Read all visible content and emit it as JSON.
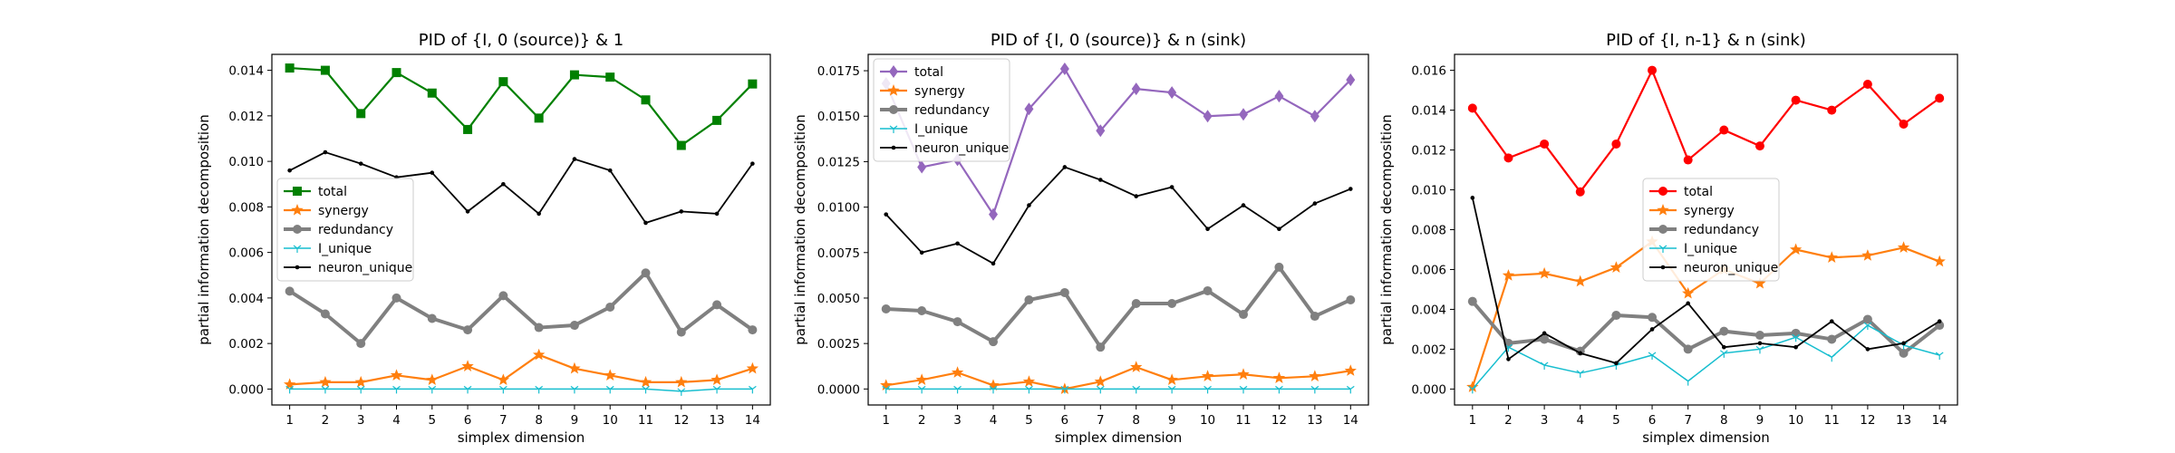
{
  "chart_data": [
    {
      "type": "line",
      "title": "PID of {I, 0 (source)} & 1",
      "xlabel": "simplex dimension",
      "ylabel": "partial information decomposition",
      "x": [
        1,
        2,
        3,
        4,
        5,
        6,
        7,
        8,
        9,
        10,
        11,
        12,
        13,
        14
      ],
      "xlim": [
        0.5,
        14.5
      ],
      "ylim": [
        -0.0007,
        0.0147
      ],
      "yticks": [
        0.0,
        0.002,
        0.004,
        0.006,
        0.008,
        0.01,
        0.012,
        0.014
      ],
      "ytick_labels": [
        "0.000",
        "0.002",
        "0.004",
        "0.006",
        "0.008",
        "0.010",
        "0.012",
        "0.014"
      ],
      "legend_placement": "center-left",
      "series": [
        {
          "name": "total",
          "color": "#008000",
          "marker": "square",
          "values": [
            0.0141,
            0.014,
            0.0121,
            0.0139,
            0.013,
            0.0114,
            0.0135,
            0.0119,
            0.0138,
            0.0137,
            0.0127,
            0.0107,
            0.0118,
            0.0134
          ]
        },
        {
          "name": "synergy",
          "color": "#ff7f0e",
          "marker": "star",
          "values": [
            0.0002,
            0.0003,
            0.0003,
            0.0006,
            0.0004,
            0.001,
            0.0004,
            0.0015,
            0.0009,
            0.0006,
            0.0003,
            0.0003,
            0.0004,
            0.0009
          ]
        },
        {
          "name": "redundancy",
          "color": "#808080",
          "marker": "circle",
          "values": [
            0.0043,
            0.0033,
            0.002,
            0.004,
            0.0031,
            0.0026,
            0.0041,
            0.0027,
            0.0028,
            0.0036,
            0.0051,
            0.0025,
            0.0037,
            0.0026
          ]
        },
        {
          "name": "I_unique",
          "color": "#17becf",
          "marker": "tri",
          "values": [
            0.0,
            0.0,
            0.0,
            0.0,
            0.0,
            0.0,
            0.0,
            0.0,
            0.0,
            0.0,
            0.0,
            -0.0001,
            0.0,
            0.0
          ]
        },
        {
          "name": "neuron_unique",
          "color": "#000000",
          "marker": "dot",
          "values": [
            0.0096,
            0.0104,
            0.0099,
            0.0093,
            0.0095,
            0.0078,
            0.009,
            0.0077,
            0.0101,
            0.0096,
            0.0073,
            0.0078,
            0.0077,
            0.0099
          ]
        }
      ]
    },
    {
      "type": "line",
      "title": "PID of {I, 0 (source)} & n (sink)",
      "xlabel": "simplex dimension",
      "ylabel": "partial information decomposition",
      "x": [
        1,
        2,
        3,
        4,
        5,
        6,
        7,
        8,
        9,
        10,
        11,
        12,
        13,
        14
      ],
      "xlim": [
        0.5,
        14.5
      ],
      "ylim": [
        -0.00088,
        0.0184
      ],
      "yticks": [
        0.0,
        0.0025,
        0.005,
        0.0075,
        0.01,
        0.0125,
        0.015,
        0.0175
      ],
      "ytick_labels": [
        "0.0000",
        "0.0025",
        "0.0050",
        "0.0075",
        "0.0100",
        "0.0125",
        "0.0150",
        "0.0175"
      ],
      "legend_placement": "upper-left",
      "series": [
        {
          "name": "total",
          "color": "#9467bd",
          "marker": "diamond",
          "values": [
            0.0168,
            0.0122,
            0.0126,
            0.0096,
            0.0154,
            0.0176,
            0.0142,
            0.0165,
            0.0163,
            0.015,
            0.0151,
            0.0161,
            0.015,
            0.017
          ]
        },
        {
          "name": "synergy",
          "color": "#ff7f0e",
          "marker": "star",
          "values": [
            0.0002,
            0.0005,
            0.0009,
            0.0002,
            0.0004,
            0.0,
            0.0004,
            0.0012,
            0.0005,
            0.0007,
            0.0008,
            0.0006,
            0.0007,
            0.001
          ]
        },
        {
          "name": "redundancy",
          "color": "#808080",
          "marker": "circle",
          "values": [
            0.0044,
            0.0043,
            0.0037,
            0.0026,
            0.0049,
            0.0053,
            0.0023,
            0.0047,
            0.0047,
            0.0054,
            0.0041,
            0.0067,
            0.004,
            0.0049
          ]
        },
        {
          "name": "I_unique",
          "color": "#17becf",
          "marker": "tri",
          "values": [
            0.0,
            0.0,
            0.0,
            0.0,
            0.0,
            0.0,
            0.0,
            0.0,
            0.0,
            0.0,
            0.0,
            0.0,
            0.0,
            0.0
          ]
        },
        {
          "name": "neuron_unique",
          "color": "#000000",
          "marker": "dot",
          "values": [
            0.0096,
            0.0075,
            0.008,
            0.0069,
            0.0101,
            0.0122,
            0.0115,
            0.0106,
            0.0111,
            0.0088,
            0.0101,
            0.0088,
            0.0102,
            0.011
          ]
        }
      ]
    },
    {
      "type": "line",
      "title": "PID of {I, n-1} & n (sink)",
      "xlabel": "simplex dimension",
      "ylabel": "partial information decomposition",
      "x": [
        1,
        2,
        3,
        4,
        5,
        6,
        7,
        8,
        9,
        10,
        11,
        12,
        13,
        14
      ],
      "xlim": [
        0.5,
        14.5
      ],
      "ylim": [
        -0.0008,
        0.0168
      ],
      "yticks": [
        0.0,
        0.002,
        0.004,
        0.006,
        0.008,
        0.01,
        0.012,
        0.014,
        0.016
      ],
      "ytick_labels": [
        "0.000",
        "0.002",
        "0.004",
        "0.006",
        "0.008",
        "0.010",
        "0.012",
        "0.014",
        "0.016"
      ],
      "legend_placement": "center",
      "series": [
        {
          "name": "total",
          "color": "#ff0000",
          "marker": "circle",
          "values": [
            0.0141,
            0.0116,
            0.0123,
            0.0099,
            0.0123,
            0.016,
            0.0115,
            0.013,
            0.0122,
            0.0145,
            0.014,
            0.0153,
            0.0133,
            0.0146
          ]
        },
        {
          "name": "synergy",
          "color": "#ff7f0e",
          "marker": "star",
          "values": [
            0.0001,
            0.0057,
            0.0058,
            0.0054,
            0.0061,
            0.0074,
            0.0048,
            0.006,
            0.0053,
            0.007,
            0.0066,
            0.0067,
            0.0071,
            0.0064
          ]
        },
        {
          "name": "redundancy",
          "color": "#808080",
          "marker": "circle",
          "values": [
            0.0044,
            0.0023,
            0.0025,
            0.0019,
            0.0037,
            0.0036,
            0.002,
            0.0029,
            0.0027,
            0.0028,
            0.0025,
            0.0035,
            0.0018,
            0.0032
          ]
        },
        {
          "name": "I_unique",
          "color": "#17becf",
          "marker": "tri",
          "values": [
            0.0,
            0.0021,
            0.0012,
            0.0008,
            0.0012,
            0.0017,
            0.0004,
            0.0018,
            0.002,
            0.0026,
            0.0016,
            0.0032,
            0.0022,
            0.0017
          ]
        },
        {
          "name": "neuron_unique",
          "color": "#000000",
          "marker": "dot",
          "values": [
            0.0096,
            0.0015,
            0.0028,
            0.0018,
            0.0013,
            0.003,
            0.0043,
            0.0021,
            0.0023,
            0.0021,
            0.0034,
            0.002,
            0.0023,
            0.0034
          ]
        }
      ]
    }
  ]
}
